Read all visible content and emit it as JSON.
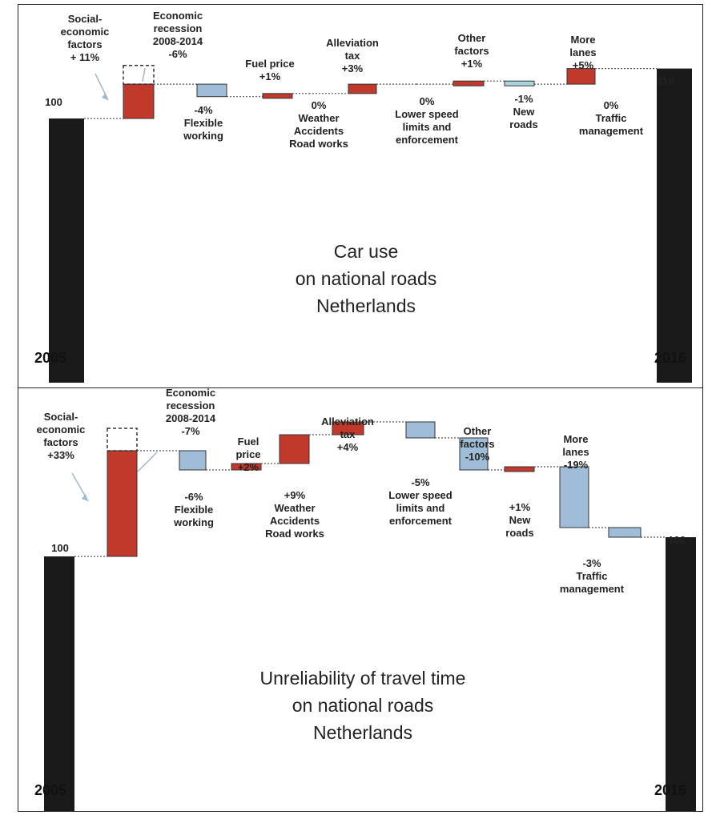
{
  "chart_data": [
    {
      "type": "bar",
      "subtype": "waterfall",
      "title": [
        "Car use",
        "on national roads",
        "Netherlands"
      ],
      "start": {
        "label": "2005",
        "value": 100,
        "value_label": "100"
      },
      "end": {
        "label": "2016",
        "value": 116,
        "value_label": "116"
      },
      "ghost": {
        "label": [
          "Economic",
          "recession",
          "2008-2014",
          "-6%"
        ],
        "value": -6
      },
      "steps": [
        {
          "label": [
            "Social-",
            "economic",
            "factors",
            "+ 11%"
          ],
          "value": 11,
          "color": "#c0392b"
        },
        {
          "label": [
            "-4%",
            "Flexible",
            "working"
          ],
          "value": -4,
          "color": "#9fbdd9"
        },
        {
          "label": [
            "Fuel price",
            "+1%"
          ],
          "value": 1,
          "color": "#c0392b"
        },
        {
          "label": [
            "0%",
            "Weather",
            "Accidents",
            "Road works"
          ],
          "value": 0,
          "color": "#c0392b"
        },
        {
          "label": [
            "Alleviation",
            "tax",
            "+3%"
          ],
          "value": 3,
          "color": "#c0392b"
        },
        {
          "label": [
            "0%",
            "Lower speed",
            "limits and",
            "enforcement"
          ],
          "value": 0,
          "color": "#9fbdd9"
        },
        {
          "label": [
            "Other",
            "factors",
            "+1%"
          ],
          "value": 1,
          "color": "#c0392b"
        },
        {
          "label": [
            "-1%",
            "New",
            "roads"
          ],
          "value": -1,
          "color": "#a9d4df"
        },
        {
          "label": [
            "More",
            "lanes",
            "+5%"
          ],
          "value": 5,
          "color": "#c0392b"
        },
        {
          "label": [
            "0%",
            "Traffic",
            "management"
          ],
          "value": 0,
          "color": "#9fbdd9"
        }
      ]
    },
    {
      "type": "bar",
      "subtype": "waterfall",
      "title": [
        "Unreliability of travel time",
        "on national roads",
        "Netherlands"
      ],
      "start": {
        "label": "2005",
        "value": 100,
        "value_label": "100"
      },
      "end": {
        "label": "2016",
        "value": 106,
        "value_label": "106"
      },
      "ghost": {
        "label": [
          "Economic",
          "recession",
          "2008-2014",
          "-7%"
        ],
        "value": -7
      },
      "steps": [
        {
          "label": [
            "Social-",
            "economic",
            "factors",
            "+33%"
          ],
          "value": 33,
          "color": "#c0392b"
        },
        {
          "label": [
            "-6%",
            "Flexible",
            "working"
          ],
          "value": -6,
          "color": "#9fbdd9"
        },
        {
          "label": [
            "Fuel",
            "price",
            "+2%"
          ],
          "value": 2,
          "color": "#c0392b"
        },
        {
          "label": [
            "+9%",
            "Weather",
            "Accidents",
            "Road works"
          ],
          "value": 9,
          "color": "#c0392b"
        },
        {
          "label": [
            "Alleviation",
            "tax",
            "+4%"
          ],
          "value": 4,
          "color": "#c0392b"
        },
        {
          "label": [
            "-5%",
            "Lower speed",
            "limits and",
            "enforcement"
          ],
          "value": -5,
          "color": "#9fbdd9"
        },
        {
          "label": [
            "Other",
            "factors",
            "-10%"
          ],
          "value": -10,
          "color": "#9fbdd9"
        },
        {
          "label": [
            "+1%",
            "New",
            "roads"
          ],
          "value": 1,
          "color": "#c0392b"
        },
        {
          "label": [
            "More",
            "lanes",
            "-19%"
          ],
          "value": -19,
          "color": "#9fbdd9"
        },
        {
          "label": [
            "-3%",
            "Traffic",
            "management"
          ],
          "value": -3,
          "color": "#9fbdd9"
        }
      ]
    }
  ],
  "colors": {
    "total_bar": "#1a1a1a",
    "increase": "#c0392b",
    "decrease": "#9fbdd9",
    "arrow": "#9fb8d0"
  }
}
